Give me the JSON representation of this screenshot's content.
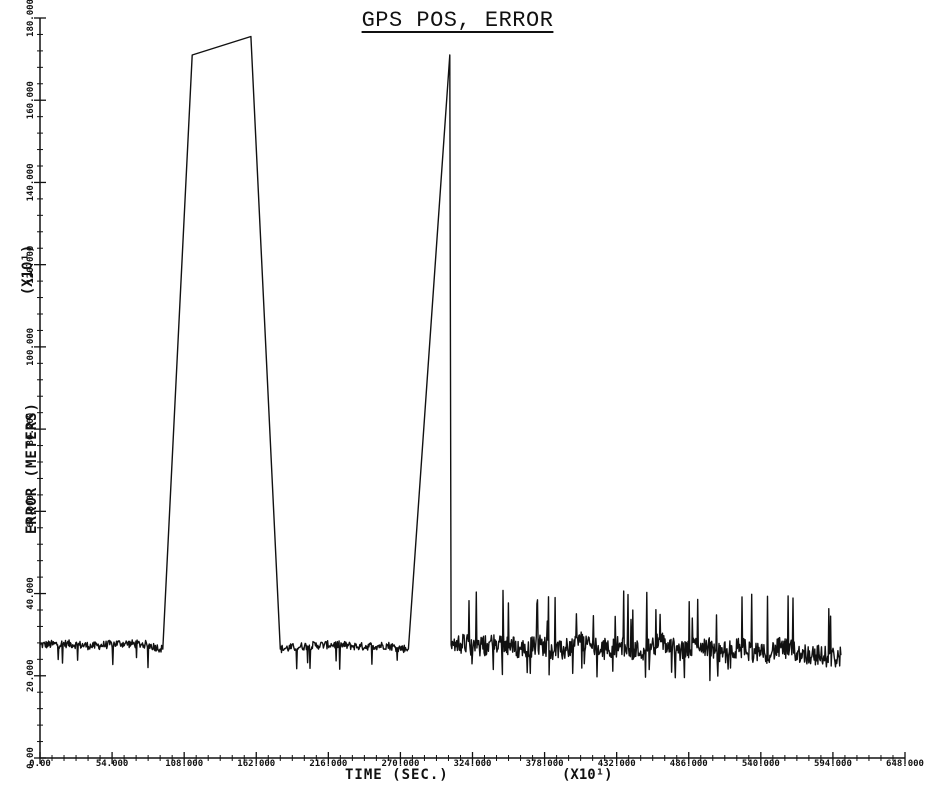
{
  "chart_data": {
    "type": "line",
    "title": "GPS POS, ERROR",
    "xlabel": "TIME (SEC.)",
    "ylabel": "ERROR (METERS)",
    "x_multiplier": "(X10¹)",
    "y_multiplier": "(X10¹)",
    "xlim": [
      0,
      648
    ],
    "ylim": [
      0,
      180
    ],
    "x_ticks": [
      0,
      54,
      108,
      162,
      216,
      270,
      324,
      378,
      432,
      486,
      540,
      594,
      648
    ],
    "x_tick_labels": [
      "0.00",
      "54.000",
      "108.000",
      "162.000",
      "216.000",
      "270.000",
      "324.000",
      "378.000",
      "432.000",
      "486.000",
      "540.000",
      "594.000",
      "648.000"
    ],
    "y_ticks": [
      0,
      20,
      40,
      60,
      80,
      100,
      120,
      140,
      160,
      180
    ],
    "y_tick_labels": [
      "0.00",
      "20.000",
      "40.000",
      "60.000",
      "80.000",
      "100.000",
      "120.000",
      "140.000",
      "160.000",
      "180.000"
    ],
    "line_color": "#111111",
    "series": [
      {
        "x": [
          0,
          20,
          40,
          60,
          80,
          92,
          114,
          158,
          180,
          200,
          220,
          240,
          260,
          268,
          276,
          307,
          308,
          315,
          330,
          345,
          360,
          375,
          390,
          405,
          420,
          435,
          450,
          465,
          480,
          495,
          510,
          525,
          540,
          555,
          570,
          585,
          595,
          600
        ],
        "y": [
          27.5,
          27.8,
          27.2,
          27.9,
          27.6,
          26.5,
          171,
          175.5,
          26.5,
          27.3,
          27.6,
          27.1,
          27.4,
          26.8,
          26.5,
          171,
          27.5,
          27.9,
          27.0,
          28.2,
          26.5,
          27.6,
          25.8,
          28.6,
          26.4,
          27.3,
          26.0,
          28.3,
          25.7,
          27.9,
          25.4,
          26.9,
          25.1,
          26.8,
          25.5,
          24.9,
          24.4,
          25.0
        ]
      }
    ]
  }
}
